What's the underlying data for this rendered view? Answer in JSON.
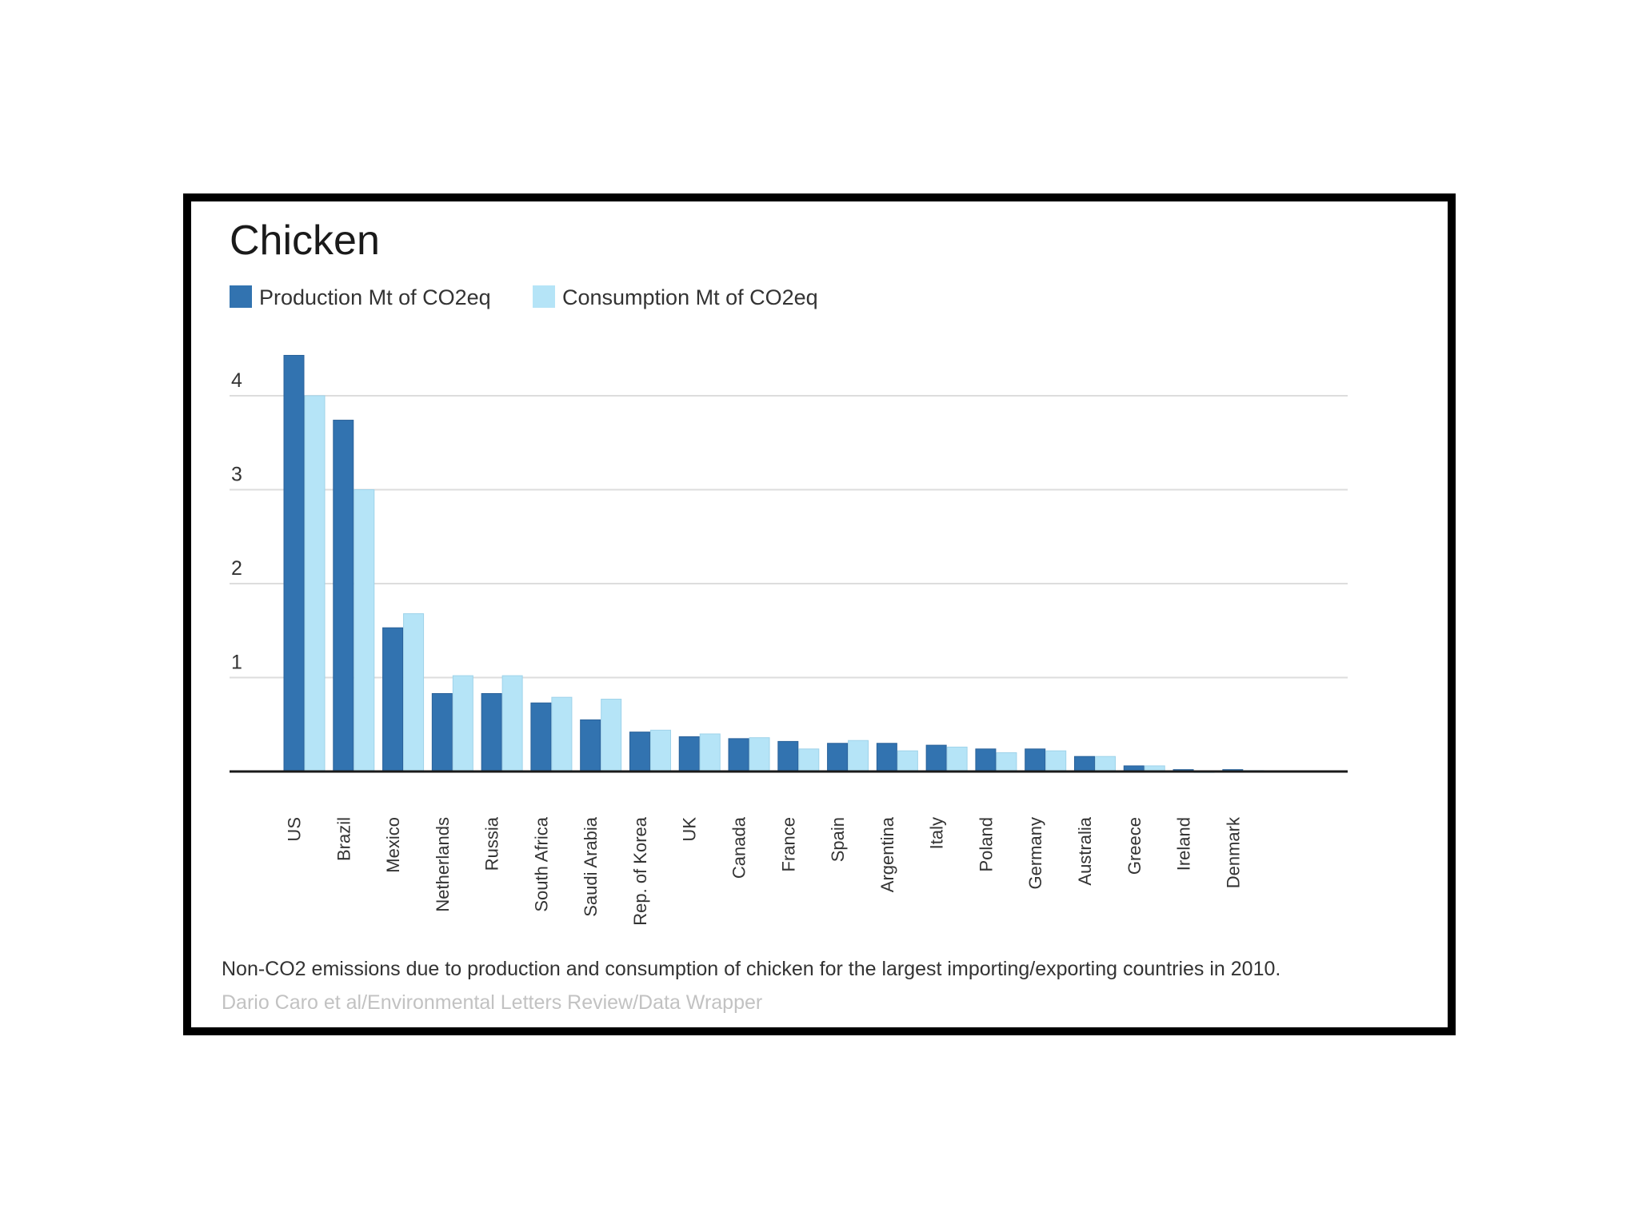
{
  "chart_data": {
    "type": "bar",
    "title": "Chicken",
    "xlabel": "",
    "ylabel": "",
    "ylim": [
      0,
      4.5
    ],
    "yticks": [
      1,
      2,
      3,
      4
    ],
    "grid": true,
    "legend_position": "top-left",
    "categories": [
      "US",
      "Brazil",
      "Mexico",
      "Netherlands",
      "Russia",
      "South Africa",
      "Saudi Arabia",
      "Rep. of Korea",
      "UK",
      "Canada",
      "France",
      "Spain",
      "Argentina",
      "Italy",
      "Poland",
      "Germany",
      "Australia",
      "Greece",
      "Ireland",
      "Denmark"
    ],
    "series": [
      {
        "name": "Production Mt of CO2eq",
        "color": "#3273b0",
        "values": [
          4.43,
          3.74,
          1.53,
          0.83,
          0.83,
          0.73,
          0.55,
          0.42,
          0.37,
          0.35,
          0.32,
          0.3,
          0.3,
          0.28,
          0.24,
          0.24,
          0.16,
          0.06,
          0.02,
          0.02
        ]
      },
      {
        "name": "Consumption Mt of CO2eq",
        "color": "#b5e4f7",
        "values": [
          4.0,
          3.0,
          1.68,
          1.02,
          1.02,
          0.79,
          0.77,
          0.44,
          0.4,
          0.36,
          0.24,
          0.33,
          0.22,
          0.26,
          0.2,
          0.22,
          0.16,
          0.06,
          -0.01,
          0.01
        ]
      }
    ],
    "notes": "Non-CO2 emissions due to production and consumption of chicken for the largest importing/exporting countries in 2010.",
    "source": "Dario Caro et al/Environmental Letters Review/Data Wrapper"
  }
}
